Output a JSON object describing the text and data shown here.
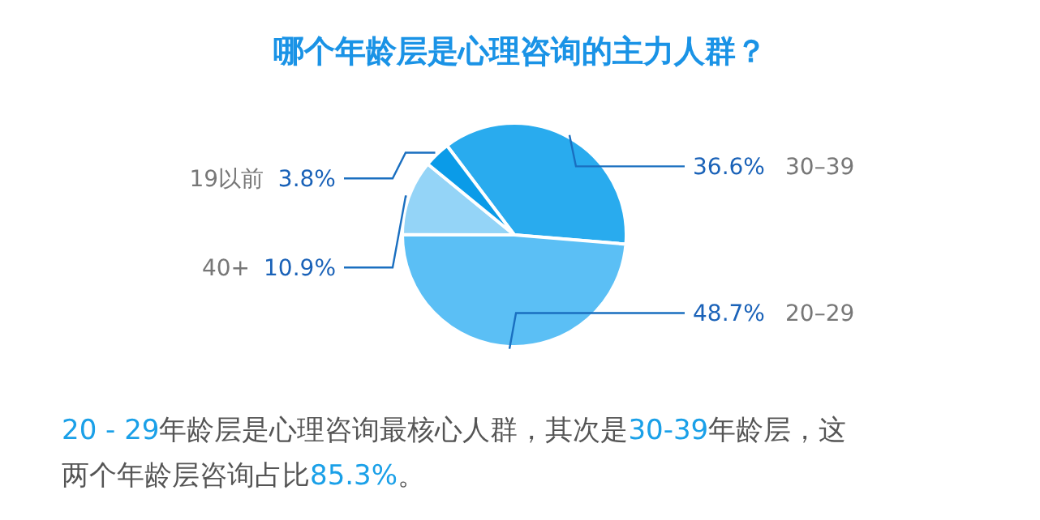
{
  "chart_data": {
    "type": "pie",
    "title": "哪个年龄层是心理咨询的主力人群？",
    "categories": [
      "30–39",
      "20–29",
      "40+",
      "19以前"
    ],
    "values": [
      36.6,
      48.7,
      10.9,
      3.8
    ],
    "colors": [
      "#29abee",
      "#5bbff5",
      "#94d4f7",
      "#0a9be8"
    ],
    "value_labels": [
      "36.6%",
      "48.7%",
      "10.9%",
      "3.8%"
    ],
    "annotations": [
      "20 - 29年龄层是心理咨询最核心人群，其次是30-39年龄层，这",
      "两个年龄层咨询占比85.3%。"
    ]
  }
}
